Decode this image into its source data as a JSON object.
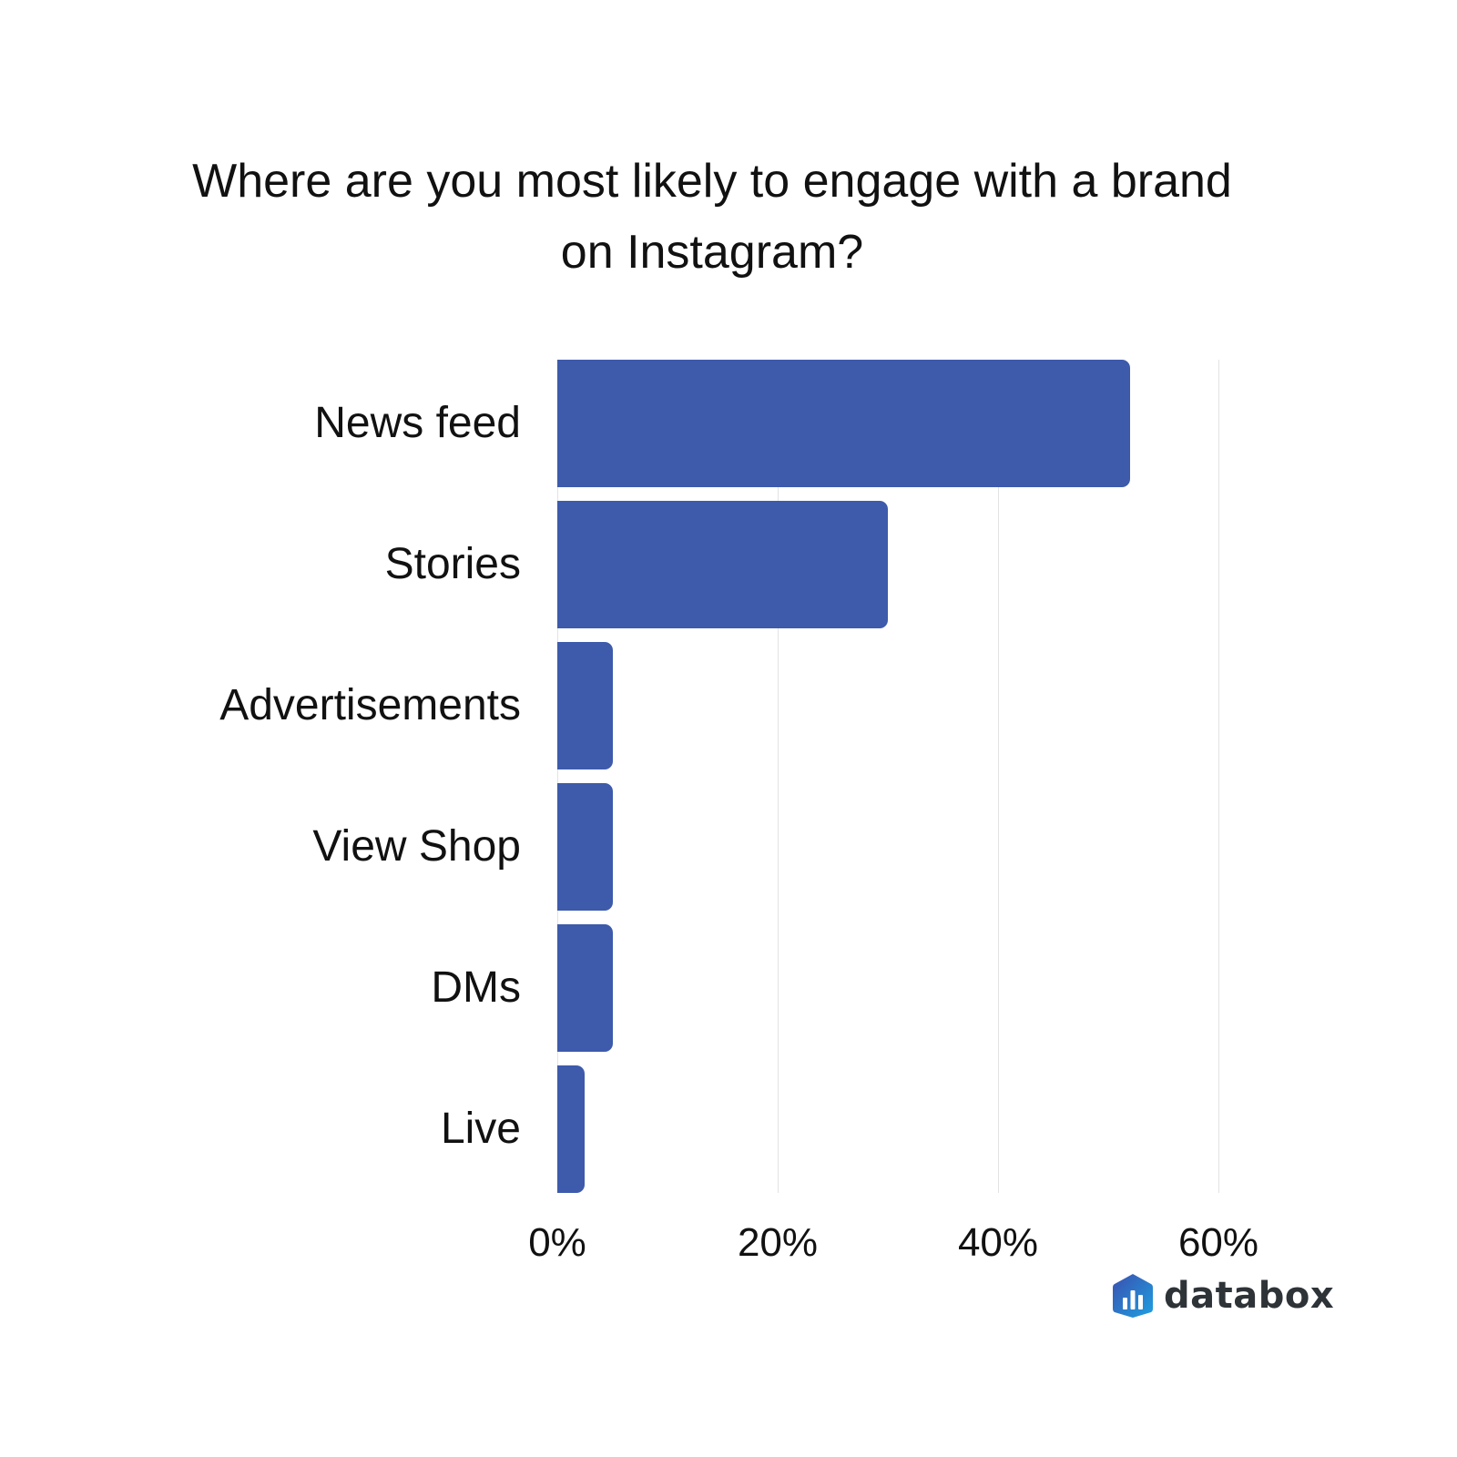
{
  "title": "Where are you most likely to engage with a brand on Instagram?",
  "title_lines": [
    "Where are you most likely to engage with a brand",
    "on Instagram?"
  ],
  "brand": {
    "name": "databox",
    "icon": "databox-logo-icon"
  },
  "colors": {
    "bar": "#3d5aab",
    "grid": "#e3e3e3",
    "text": "#111111"
  },
  "chart_data": {
    "type": "bar",
    "orientation": "horizontal",
    "title": "Where are you most likely to engage with a brand on Instagram?",
    "categories": [
      "News feed",
      "Stories",
      "Advertisements",
      "View Shop",
      "DMs",
      "Live"
    ],
    "values": [
      52,
      30,
      5,
      5,
      5,
      2.5
    ],
    "xlabel": "",
    "ylabel": "",
    "xlim": [
      0,
      60
    ],
    "x_ticks": [
      "0%",
      "20%",
      "40%",
      "60%"
    ],
    "grid": true,
    "legend": null,
    "value_format": "percent"
  }
}
